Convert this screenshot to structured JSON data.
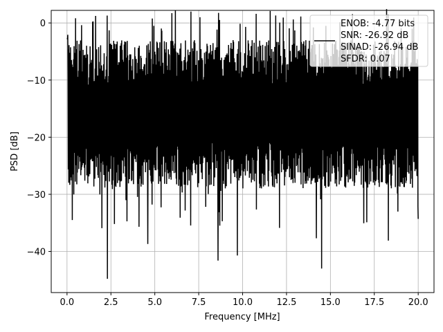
{
  "chart_data": {
    "type": "line",
    "title": "",
    "xlabel": "Frequency [MHz]",
    "ylabel": "PSD [dB]",
    "xlim": [
      -0.9,
      20.9
    ],
    "ylim": [
      -47.2,
      2.2
    ],
    "xticks": [
      0.0,
      2.5,
      5.0,
      7.5,
      10.0,
      12.5,
      15.0,
      17.5,
      20.0
    ],
    "xtick_labels": [
      "0.0",
      "2.5",
      "5.0",
      "7.5",
      "10.0",
      "12.5",
      "15.0",
      "17.5",
      "20.0"
    ],
    "yticks": [
      0,
      -10,
      -20,
      -30,
      -40
    ],
    "ytick_labels": [
      "0",
      "−10",
      "−20",
      "−30",
      "−40"
    ],
    "grid": true,
    "legend_position": "top-right",
    "line_color": "#000000",
    "series": [
      {
        "x_range": [
          0.0,
          20.0
        ],
        "noise_floor_range_db": [
          -25,
          -5
        ],
        "peak_max_db": -1.4,
        "notable_dips": [
          {
            "x": 0.3,
            "y": -34.5
          },
          {
            "x": 2.3,
            "y": -44.8
          },
          {
            "x": 4.6,
            "y": -38.7
          },
          {
            "x": 8.6,
            "y": -41.6
          },
          {
            "x": 9.7,
            "y": -40.7
          },
          {
            "x": 14.2,
            "y": -37.7
          },
          {
            "x": 14.5,
            "y": -43.0
          },
          {
            "x": 18.3,
            "y": -38.1
          },
          {
            "x": 20.0,
            "y": -34.3
          }
        ]
      }
    ],
    "legend": {
      "lines": [
        "ENOB: -4.77 bits",
        "SNR: -26.92 dB",
        "SINAD: -26.94 dB",
        "SFDR: 0.07"
      ]
    }
  }
}
